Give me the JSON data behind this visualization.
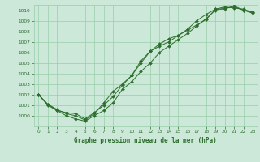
{
  "title": "Graphe pression niveau de la mer (hPa)",
  "bg_color": "#cce8d8",
  "grid_color": "#99ccaa",
  "line_color": "#2d6e2d",
  "marker_color": "#2d6e2d",
  "xlim_min": -0.5,
  "xlim_max": 23.5,
  "ylim_min": 999.0,
  "ylim_max": 1010.5,
  "xticks": [
    0,
    1,
    2,
    3,
    4,
    5,
    6,
    7,
    8,
    9,
    10,
    11,
    12,
    13,
    14,
    15,
    16,
    17,
    18,
    19,
    20,
    21,
    22,
    23
  ],
  "yticks": [
    1000,
    1001,
    1002,
    1003,
    1004,
    1005,
    1006,
    1007,
    1008,
    1009,
    1010
  ],
  "series1_x": [
    0,
    1,
    2,
    3,
    4,
    5,
    6,
    7,
    8,
    9,
    10,
    11,
    12,
    13,
    14,
    15,
    16,
    17,
    18,
    19,
    20,
    21,
    22,
    23
  ],
  "series1_y": [
    1002,
    1001,
    1000.5,
    1000,
    999.7,
    999.5,
    1000,
    1000.5,
    1001.2,
    1002.5,
    1003.2,
    1004.2,
    1005.0,
    1006.0,
    1006.6,
    1007.2,
    1007.8,
    1008.5,
    1009.2,
    1010.0,
    1010.2,
    1010.3,
    1010.0,
    1009.7
  ],
  "series2_x": [
    0,
    1,
    2,
    3,
    4,
    5,
    6,
    7,
    8,
    9,
    10,
    11,
    12,
    13,
    14,
    15,
    16,
    17,
    18,
    19,
    20,
    21,
    22,
    23
  ],
  "series2_y": [
    1002,
    1001.1,
    1000.5,
    1000.3,
    1000.2,
    999.7,
    1000.3,
    1001.0,
    1001.8,
    1002.9,
    1003.8,
    1005.0,
    1006.1,
    1006.6,
    1007.0,
    1007.6,
    1008.2,
    1009.0,
    1009.6,
    1010.1,
    1010.3,
    1010.2,
    1010.1,
    1009.8
  ],
  "series3_x": [
    0,
    1,
    2,
    3,
    4,
    5,
    6,
    7,
    8,
    9,
    10,
    11,
    12,
    13,
    14,
    15,
    16,
    17,
    18,
    19,
    20,
    21,
    22,
    23
  ],
  "series3_y": [
    1002,
    1001.1,
    1000.6,
    1000.2,
    1000.0,
    999.6,
    1000.2,
    1001.2,
    1002.3,
    1003.0,
    1003.8,
    1005.2,
    1006.1,
    1006.8,
    1007.3,
    1007.6,
    1008.1,
    1008.6,
    1009.1,
    1010.1,
    1010.1,
    1010.4,
    1010.0,
    1009.8
  ]
}
